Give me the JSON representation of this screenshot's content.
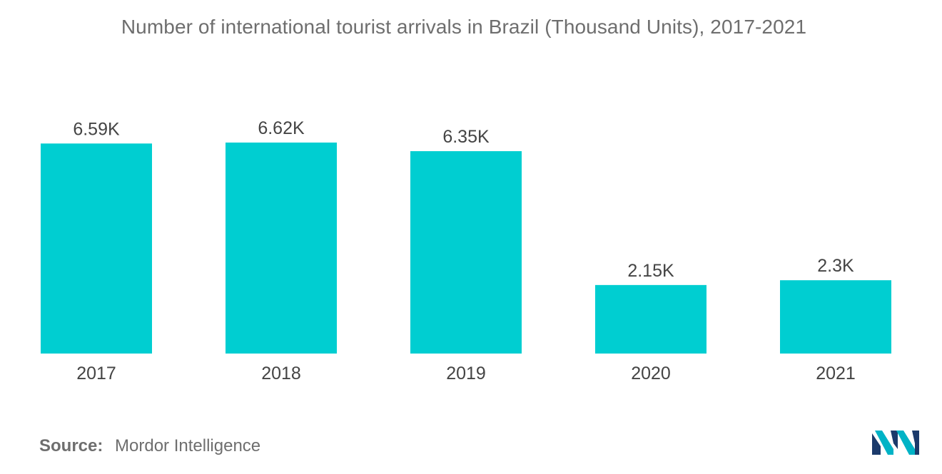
{
  "chart_data": {
    "type": "bar",
    "title": "Number of international tourist arrivals in Brazil (Thousand Units), 2017-2021",
    "categories": [
      "2017",
      "2018",
      "2019",
      "2020",
      "2021"
    ],
    "values": [
      6.59,
      6.62,
      6.35,
      2.15,
      2.3
    ],
    "data_labels": [
      "6.59K",
      "6.62K",
      "6.35K",
      "2.15K",
      "2.3K"
    ],
    "xlabel": "",
    "ylabel": "",
    "ylim": [
      0,
      6.62
    ],
    "grid": false,
    "bar_color": "#00ced1"
  },
  "source": {
    "label": "Source:",
    "value": "Mordor Intelligence"
  },
  "logo": {
    "icon": "mordor-intelligence-logo-icon",
    "colors": [
      "#1b3a6b",
      "#00b3c6"
    ]
  }
}
